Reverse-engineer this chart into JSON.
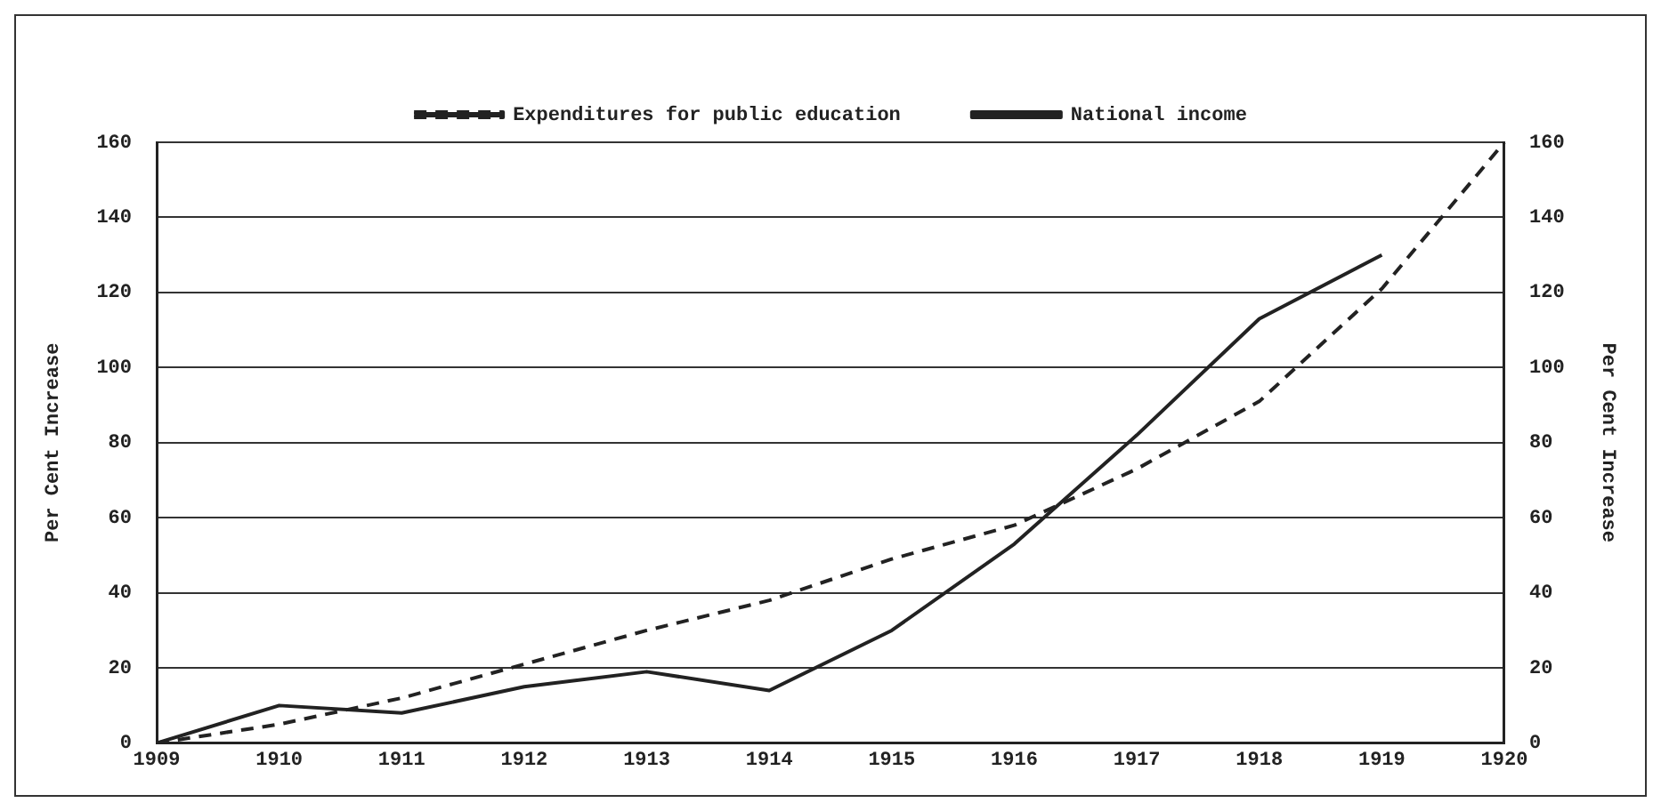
{
  "chart_data": {
    "type": "line",
    "ylabel": "Per Cent Increase",
    "y2label": "Per Cent Increase",
    "categories": [
      "1909",
      "1910",
      "1911",
      "1912",
      "1913",
      "1914",
      "1915",
      "1916",
      "1917",
      "1918",
      "1919",
      "1920"
    ],
    "series": [
      {
        "name": "Expenditures for public education",
        "color": "#222222",
        "line_style": "dashed",
        "values": [
          0,
          5,
          12,
          21,
          30,
          38,
          49,
          58,
          73,
          91,
          121,
          160
        ]
      },
      {
        "name": "National income",
        "color": "#222222",
        "line_style": "solid",
        "values": [
          0,
          10,
          8,
          15,
          19,
          14,
          30,
          53,
          82,
          113,
          130,
          null
        ]
      }
    ],
    "ylim": [
      0,
      160
    ],
    "yticks": [
      0,
      20,
      40,
      60,
      80,
      100,
      120,
      140,
      160
    ],
    "y2lim": [
      0,
      160
    ],
    "y2ticks": [
      0,
      20,
      40,
      60,
      80,
      100,
      120,
      140,
      160
    ],
    "grid": "y",
    "legend": "top",
    "marker": "none"
  }
}
